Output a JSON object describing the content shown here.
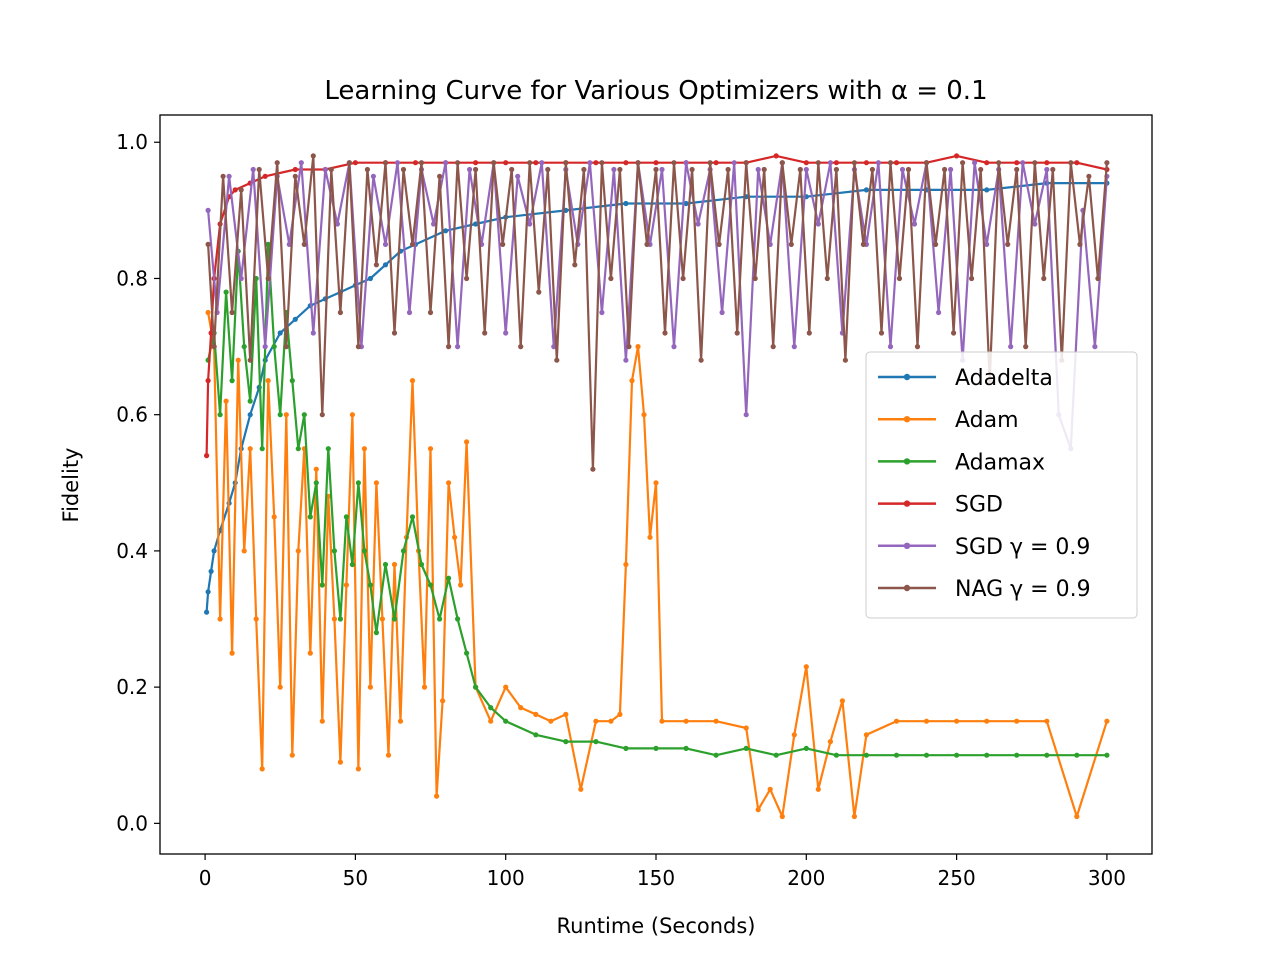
{
  "chart_data": {
    "type": "line",
    "title": "Learning Curve for Various Optimizers with α = 0.1",
    "xlabel": "Runtime (Seconds)",
    "ylabel": "Fidelity",
    "xlim": [
      -15,
      315
    ],
    "ylim": [
      -0.045,
      1.04
    ],
    "x_ticks": [
      0,
      50,
      100,
      150,
      200,
      250,
      300
    ],
    "y_ticks": [
      0.0,
      0.2,
      0.4,
      0.6,
      0.8,
      1.0
    ],
    "x_tick_labels": [
      "0",
      "50",
      "100",
      "150",
      "200",
      "250",
      "300"
    ],
    "y_tick_labels": [
      "0.0",
      "0.2",
      "0.4",
      "0.6",
      "0.8",
      "1.0"
    ],
    "grid": false,
    "legend_position": "right",
    "series": [
      {
        "name": "Adadelta",
        "color": "#1f77b4",
        "x": [
          0.5,
          1,
          2,
          3,
          5,
          8,
          10,
          12,
          15,
          18,
          20,
          25,
          30,
          35,
          40,
          45,
          50,
          55,
          60,
          65,
          70,
          80,
          90,
          100,
          120,
          140,
          160,
          180,
          200,
          220,
          240,
          260,
          280,
          300
        ],
        "y": [
          0.31,
          0.34,
          0.37,
          0.4,
          0.43,
          0.47,
          0.5,
          0.55,
          0.6,
          0.64,
          0.68,
          0.72,
          0.74,
          0.76,
          0.77,
          0.78,
          0.79,
          0.8,
          0.82,
          0.84,
          0.85,
          0.87,
          0.88,
          0.89,
          0.9,
          0.91,
          0.91,
          0.92,
          0.92,
          0.93,
          0.93,
          0.93,
          0.94,
          0.94
        ]
      },
      {
        "name": "Adam",
        "color": "#ff7f0e",
        "x": [
          1,
          3,
          5,
          7,
          9,
          11,
          13,
          15,
          17,
          19,
          21,
          23,
          25,
          27,
          29,
          31,
          33,
          35,
          37,
          39,
          41,
          43,
          45,
          47,
          49,
          51,
          53,
          55,
          57,
          59,
          61,
          63,
          65,
          67,
          69,
          71,
          73,
          75,
          77,
          79,
          81,
          83,
          85,
          87,
          90,
          95,
          100,
          105,
          110,
          115,
          120,
          125,
          130,
          135,
          138,
          140,
          142,
          144,
          146,
          148,
          150,
          152,
          160,
          170,
          180,
          184,
          188,
          192,
          196,
          200,
          204,
          208,
          212,
          216,
          220,
          230,
          240,
          250,
          260,
          270,
          280,
          290,
          300
        ],
        "y": [
          0.75,
          0.7,
          0.3,
          0.62,
          0.25,
          0.68,
          0.4,
          0.55,
          0.3,
          0.08,
          0.65,
          0.45,
          0.2,
          0.6,
          0.1,
          0.4,
          0.55,
          0.25,
          0.52,
          0.15,
          0.48,
          0.3,
          0.09,
          0.35,
          0.6,
          0.08,
          0.55,
          0.2,
          0.5,
          0.3,
          0.1,
          0.38,
          0.15,
          0.42,
          0.65,
          0.4,
          0.2,
          0.55,
          0.04,
          0.18,
          0.5,
          0.42,
          0.35,
          0.56,
          0.2,
          0.15,
          0.2,
          0.17,
          0.16,
          0.15,
          0.16,
          0.05,
          0.15,
          0.15,
          0.16,
          0.38,
          0.65,
          0.7,
          0.6,
          0.42,
          0.5,
          0.15,
          0.15,
          0.15,
          0.14,
          0.02,
          0.05,
          0.01,
          0.13,
          0.23,
          0.05,
          0.12,
          0.18,
          0.01,
          0.13,
          0.15,
          0.15,
          0.15,
          0.15,
          0.15,
          0.15,
          0.01,
          0.15
        ]
      },
      {
        "name": "Adamax",
        "color": "#2ca02c",
        "x": [
          1,
          3,
          5,
          7,
          9,
          11,
          13,
          15,
          17,
          19,
          21,
          23,
          25,
          27,
          29,
          31,
          33,
          35,
          37,
          39,
          41,
          43,
          45,
          47,
          49,
          51,
          53,
          55,
          57,
          60,
          63,
          66,
          69,
          72,
          75,
          78,
          81,
          84,
          87,
          90,
          95,
          100,
          110,
          120,
          130,
          140,
          150,
          160,
          170,
          180,
          190,
          200,
          210,
          220,
          230,
          240,
          250,
          260,
          270,
          280,
          290,
          300
        ],
        "y": [
          0.68,
          0.72,
          0.6,
          0.78,
          0.65,
          0.84,
          0.7,
          0.62,
          0.8,
          0.55,
          0.85,
          0.7,
          0.6,
          0.75,
          0.65,
          0.55,
          0.6,
          0.45,
          0.5,
          0.35,
          0.55,
          0.4,
          0.3,
          0.45,
          0.38,
          0.5,
          0.4,
          0.35,
          0.28,
          0.38,
          0.3,
          0.4,
          0.45,
          0.38,
          0.35,
          0.3,
          0.36,
          0.3,
          0.25,
          0.2,
          0.17,
          0.15,
          0.13,
          0.12,
          0.12,
          0.11,
          0.11,
          0.11,
          0.1,
          0.11,
          0.1,
          0.11,
          0.1,
          0.1,
          0.1,
          0.1,
          0.1,
          0.1,
          0.1,
          0.1,
          0.1,
          0.1
        ]
      },
      {
        "name": "SGD",
        "color": "#d62728",
        "x": [
          0.5,
          1,
          2,
          3,
          5,
          8,
          10,
          15,
          20,
          30,
          40,
          50,
          60,
          70,
          80,
          90,
          100,
          110,
          120,
          130,
          140,
          150,
          160,
          170,
          180,
          190,
          200,
          210,
          220,
          230,
          240,
          250,
          260,
          270,
          280,
          290,
          300
        ],
        "y": [
          0.54,
          0.65,
          0.72,
          0.8,
          0.88,
          0.92,
          0.93,
          0.94,
          0.95,
          0.96,
          0.96,
          0.97,
          0.97,
          0.97,
          0.97,
          0.97,
          0.97,
          0.97,
          0.97,
          0.97,
          0.97,
          0.97,
          0.97,
          0.97,
          0.97,
          0.98,
          0.97,
          0.97,
          0.97,
          0.97,
          0.97,
          0.98,
          0.97,
          0.97,
          0.97,
          0.97,
          0.96
        ]
      },
      {
        "name": "SGD γ = 0.9",
        "color": "#9467bd",
        "x": [
          1,
          4,
          8,
          12,
          16,
          20,
          24,
          28,
          32,
          36,
          40,
          44,
          48,
          52,
          56,
          60,
          64,
          68,
          72,
          76,
          80,
          84,
          88,
          92,
          96,
          100,
          104,
          108,
          112,
          116,
          120,
          124,
          128,
          132,
          136,
          140,
          144,
          148,
          152,
          156,
          160,
          164,
          168,
          172,
          176,
          180,
          184,
          188,
          192,
          196,
          200,
          204,
          208,
          212,
          216,
          220,
          224,
          228,
          232,
          236,
          240,
          244,
          248,
          252,
          256,
          260,
          264,
          268,
          272,
          276,
          280,
          284,
          288,
          292,
          296,
          300
        ],
        "y": [
          0.9,
          0.75,
          0.95,
          0.8,
          0.96,
          0.7,
          0.95,
          0.85,
          0.97,
          0.72,
          0.96,
          0.88,
          0.97,
          0.7,
          0.95,
          0.85,
          0.97,
          0.75,
          0.96,
          0.88,
          0.97,
          0.7,
          0.96,
          0.85,
          0.97,
          0.72,
          0.95,
          0.88,
          0.97,
          0.7,
          0.96,
          0.85,
          0.97,
          0.75,
          0.96,
          0.68,
          0.97,
          0.85,
          0.96,
          0.7,
          0.97,
          0.88,
          0.96,
          0.75,
          0.97,
          0.6,
          0.96,
          0.85,
          0.97,
          0.7,
          0.96,
          0.88,
          0.97,
          0.72,
          0.96,
          0.85,
          0.97,
          0.7,
          0.96,
          0.88,
          0.97,
          0.75,
          0.96,
          0.68,
          0.97,
          0.85,
          0.96,
          0.7,
          0.97,
          0.88,
          0.96,
          0.6,
          0.55,
          0.9,
          0.7,
          0.95
        ]
      },
      {
        "name": "NAG γ = 0.9",
        "color": "#8c564b",
        "x": [
          1,
          3,
          6,
          9,
          12,
          15,
          18,
          21,
          24,
          27,
          30,
          33,
          36,
          39,
          42,
          45,
          48,
          51,
          54,
          57,
          60,
          63,
          66,
          69,
          72,
          75,
          78,
          81,
          84,
          87,
          90,
          93,
          96,
          99,
          102,
          105,
          108,
          111,
          114,
          117,
          120,
          123,
          126,
          129,
          132,
          135,
          138,
          141,
          144,
          147,
          150,
          153,
          156,
          159,
          162,
          165,
          168,
          171,
          174,
          177,
          180,
          183,
          186,
          189,
          192,
          195,
          198,
          201,
          204,
          207,
          210,
          213,
          216,
          219,
          222,
          225,
          228,
          231,
          234,
          237,
          240,
          243,
          246,
          249,
          252,
          255,
          258,
          261,
          264,
          267,
          270,
          273,
          276,
          279,
          282,
          285,
          288,
          291,
          294,
          297,
          300
        ],
        "y": [
          0.85,
          0.7,
          0.95,
          0.75,
          0.93,
          0.68,
          0.96,
          0.8,
          0.97,
          0.7,
          0.95,
          0.85,
          0.98,
          0.6,
          0.96,
          0.75,
          0.97,
          0.7,
          0.96,
          0.82,
          0.97,
          0.72,
          0.96,
          0.85,
          0.97,
          0.75,
          0.95,
          0.7,
          0.97,
          0.8,
          0.96,
          0.72,
          0.97,
          0.85,
          0.96,
          0.7,
          0.97,
          0.78,
          0.96,
          0.68,
          0.97,
          0.82,
          0.96,
          0.52,
          0.97,
          0.8,
          0.96,
          0.7,
          0.97,
          0.85,
          0.96,
          0.72,
          0.97,
          0.8,
          0.96,
          0.68,
          0.97,
          0.85,
          0.96,
          0.72,
          0.97,
          0.8,
          0.96,
          0.7,
          0.97,
          0.85,
          0.96,
          0.72,
          0.97,
          0.8,
          0.96,
          0.68,
          0.97,
          0.85,
          0.96,
          0.72,
          0.97,
          0.8,
          0.96,
          0.7,
          0.97,
          0.85,
          0.96,
          0.72,
          0.97,
          0.8,
          0.96,
          0.65,
          0.97,
          0.85,
          0.96,
          0.7,
          0.97,
          0.8,
          0.96,
          0.68,
          0.97,
          0.85,
          0.95,
          0.8,
          0.97
        ]
      }
    ]
  }
}
